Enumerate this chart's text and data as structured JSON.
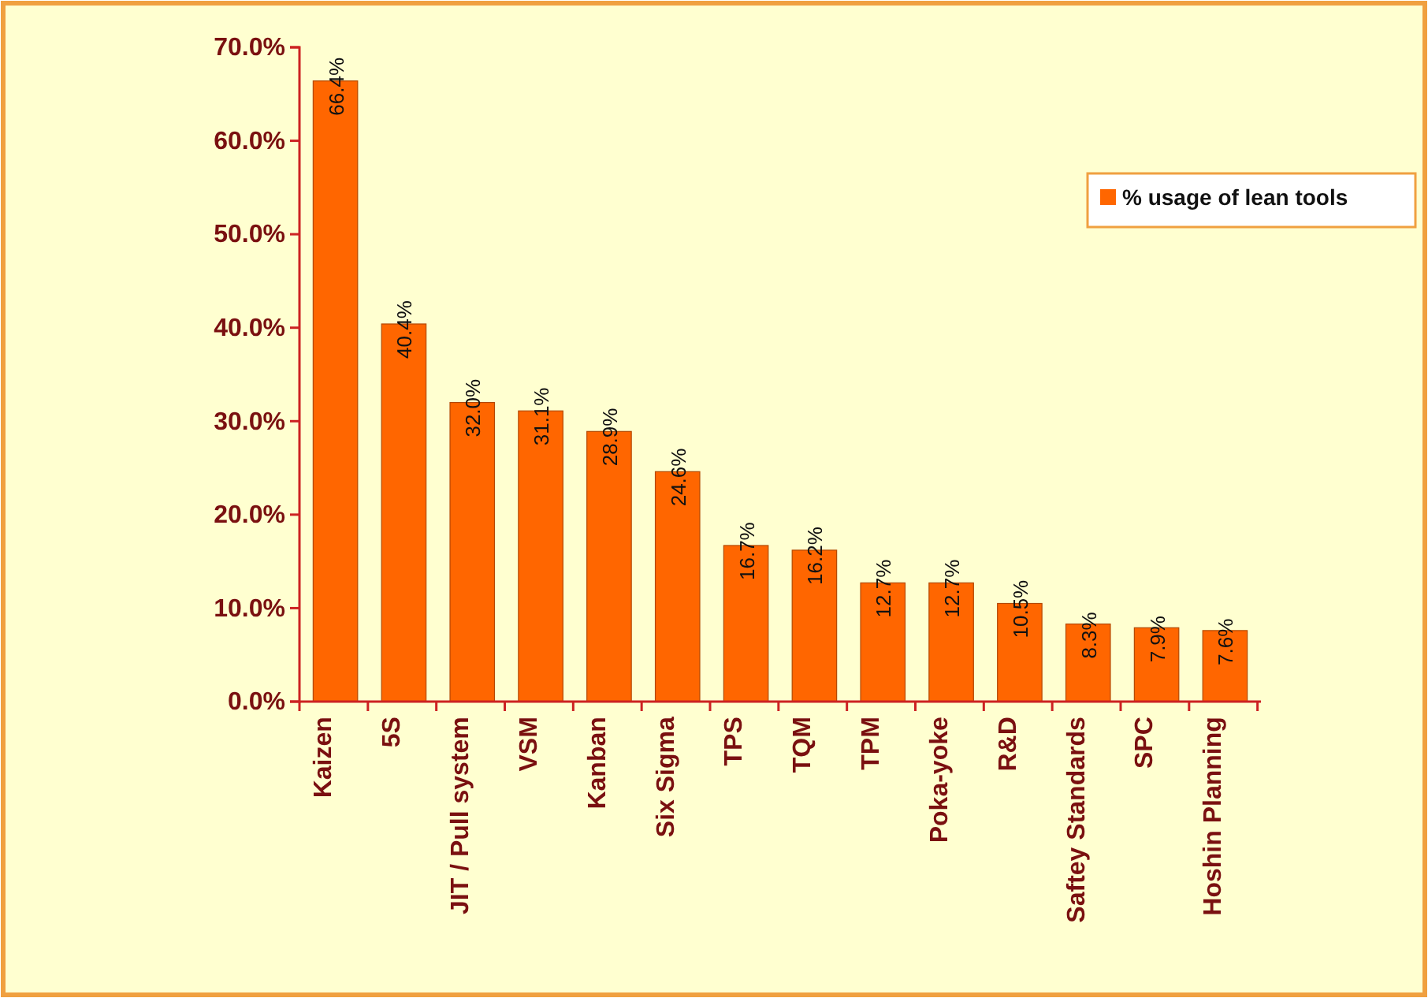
{
  "chart_data": {
    "type": "bar",
    "categories": [
      "Kaizen",
      "5S",
      "JIT / Pull system",
      "VSM",
      "Kanban",
      "Six Sigma",
      "TPS",
      "TQM",
      "TPM",
      "Poka-yoke",
      "R&D",
      "Saftey Standards",
      "SPC",
      "Hoshin Planning"
    ],
    "series": [
      {
        "name": "% usage of lean tools",
        "color": "#ff6600",
        "values": [
          66.4,
          40.4,
          32.0,
          31.1,
          28.9,
          24.6,
          16.7,
          16.2,
          12.7,
          12.7,
          10.5,
          8.3,
          7.9,
          7.6
        ],
        "value_labels": [
          "66.4%",
          "40.4%",
          "32.0%",
          "31.1%",
          "28.9%",
          "24.6%",
          "16.7%",
          "16.2%",
          "12.7%",
          "12.7%",
          "10.5%",
          "8.3%",
          "7.9%",
          "7.6%"
        ]
      }
    ],
    "ylim": [
      0,
      70
    ],
    "yticks": [
      {
        "value": 0,
        "label": "0.0%"
      },
      {
        "value": 10,
        "label": "10.0%"
      },
      {
        "value": 20,
        "label": "20.0%"
      },
      {
        "value": 30,
        "label": "30.0%"
      },
      {
        "value": 40,
        "label": "40.0%"
      },
      {
        "value": 50,
        "label": "50.0%"
      },
      {
        "value": 60,
        "label": "60.0%"
      },
      {
        "value": 70,
        "label": "70.0%"
      }
    ],
    "grid": false,
    "legend": "right"
  }
}
